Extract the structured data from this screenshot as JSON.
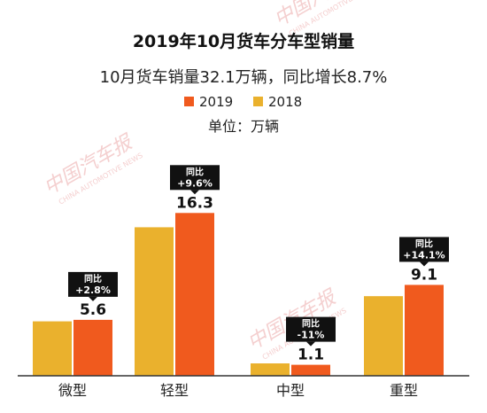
{
  "chart_data": {
    "type": "bar",
    "title": "2019年10月货车分车型销量",
    "subtitle": "10月货车销量32.1万辆，同比增长8.7%",
    "unit_label": "单位：万辆",
    "categories": [
      "微型",
      "轻型",
      "中型",
      "重型"
    ],
    "series": [
      {
        "name": "2019",
        "color": "#f05a1e",
        "values": [
          5.6,
          16.3,
          1.1,
          9.1
        ]
      },
      {
        "name": "2018",
        "color": "#eab12d",
        "values": [
          5.45,
          14.87,
          1.24,
          7.97
        ]
      }
    ],
    "data_labels": [
      "5.6",
      "16.3",
      "1.1",
      "9.1"
    ],
    "yoy_title": "同比",
    "yoy_values": [
      "+2.8%",
      "+9.6%",
      "-11%",
      "+14.1%"
    ],
    "ylim": [
      0,
      18
    ],
    "legend_position": "top-center",
    "grid": false
  },
  "watermark": {
    "name": "中国汽车报",
    "subtitle": "CHINA AUTOMOTIVE NEWS"
  }
}
